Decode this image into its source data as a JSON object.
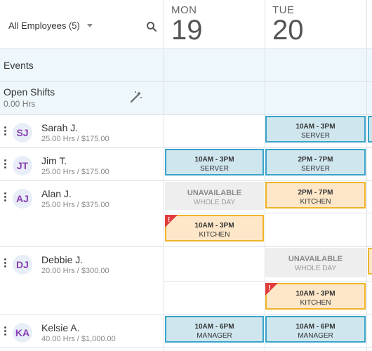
{
  "header": {
    "filter_label": "All Employees (5)",
    "days": [
      {
        "dow": "MON",
        "num": "19"
      },
      {
        "dow": "TUE",
        "num": "20"
      }
    ]
  },
  "sections": {
    "events_label": "Events",
    "open_shifts_label": "Open Shifts",
    "open_shifts_hours": "0.00 Hrs"
  },
  "employees": [
    {
      "initials": "SJ",
      "name": "Sarah J.",
      "hours": "25.00 Hrs / $175.00"
    },
    {
      "initials": "JT",
      "name": "Jim T.",
      "hours": "25.00 Hrs / $175.00"
    },
    {
      "initials": "AJ",
      "name": "Alan J.",
      "hours": "25.00 Hrs / $375.00"
    },
    {
      "initials": "DJ",
      "name": "Debbie J.",
      "hours": "20.00 Hrs / $300.00"
    },
    {
      "initials": "KA",
      "name": "Kelsie A.",
      "hours": "40.00 Hrs / $1,000.00"
    }
  ],
  "shifts": {
    "sarah_tue": {
      "time": "10AM - 3PM",
      "role": "SERVER"
    },
    "jim_mon": {
      "time": "10AM - 3PM",
      "role": "SERVER"
    },
    "jim_tue": {
      "time": "2PM - 7PM",
      "role": "SERVER"
    },
    "alan_mon_unavail": {
      "title": "UNAVAILABLE",
      "sub": "WHOLE DAY"
    },
    "alan_tue": {
      "time": "2PM - 7PM",
      "role": "KITCHEN"
    },
    "alan_mon": {
      "time": "10AM - 3PM",
      "role": "KITCHEN"
    },
    "debbie_tue_unavail": {
      "title": "UNAVAILABLE",
      "sub": "WHOLE DAY"
    },
    "debbie_tue": {
      "time": "10AM - 3PM",
      "role": "KITCHEN"
    },
    "kelsie_mon": {
      "time": "10AM - 6PM",
      "role": "MANAGER"
    },
    "kelsie_tue": {
      "time": "10AM - 6PM",
      "role": "MANAGER"
    }
  },
  "colors": {
    "shift_blue": "#3aa3c8",
    "shift_orange": "#f0b429",
    "avatar_text": "#8a3fb4",
    "warning_red": "#e23b3b"
  }
}
